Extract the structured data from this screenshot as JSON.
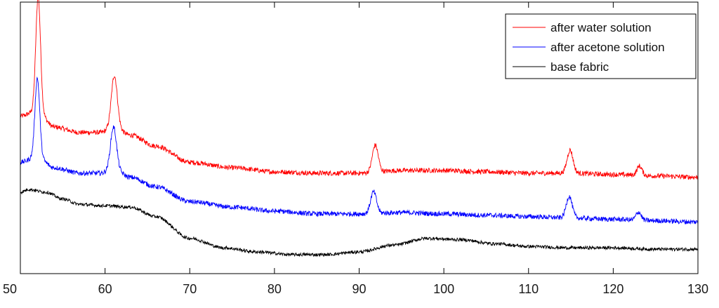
{
  "chart_data": {
    "type": "line",
    "title": "",
    "xlabel": "",
    "ylabel": "",
    "xlim": [
      50,
      130
    ],
    "ylim": [
      0,
      10
    ],
    "x_ticks": [
      50,
      60,
      70,
      80,
      90,
      100,
      110,
      120,
      130
    ],
    "grid": false,
    "legend_position": "top-right",
    "series": [
      {
        "name": "after water solution",
        "color": "#ff0000",
        "baseline": [
          [
            50,
            5.8
          ],
          [
            52,
            6.0
          ],
          [
            54,
            5.4
          ],
          [
            57,
            5.2
          ],
          [
            59.5,
            5.2
          ],
          [
            61,
            5.4
          ],
          [
            63,
            5.1
          ],
          [
            66,
            4.7
          ],
          [
            70,
            4.1
          ],
          [
            75,
            3.9
          ],
          [
            80,
            3.75
          ],
          [
            85,
            3.7
          ],
          [
            90,
            3.7
          ],
          [
            95,
            3.8
          ],
          [
            100,
            3.8
          ],
          [
            105,
            3.75
          ],
          [
            110,
            3.7
          ],
          [
            115,
            3.7
          ],
          [
            120,
            3.65
          ],
          [
            125,
            3.6
          ],
          [
            130,
            3.55
          ]
        ],
        "peaks": [
          [
            52.1,
            4.2,
            0.28
          ],
          [
            61.1,
            1.9,
            0.35
          ],
          [
            91.9,
            1.0,
            0.35
          ],
          [
            114.9,
            0.85,
            0.35
          ],
          [
            123.1,
            0.35,
            0.3
          ]
        ],
        "noise": 0.09
      },
      {
        "name": "after acetone solution",
        "color": "#0000ff",
        "baseline": [
          [
            50,
            4.1
          ],
          [
            52,
            4.3
          ],
          [
            54,
            3.9
          ],
          [
            57,
            3.7
          ],
          [
            59.5,
            3.7
          ],
          [
            61,
            3.85
          ],
          [
            63,
            3.55
          ],
          [
            66,
            3.2
          ],
          [
            70,
            2.65
          ],
          [
            75,
            2.45
          ],
          [
            80,
            2.3
          ],
          [
            85,
            2.2
          ],
          [
            90,
            2.2
          ],
          [
            95,
            2.25
          ],
          [
            100,
            2.2
          ],
          [
            105,
            2.15
          ],
          [
            110,
            2.1
          ],
          [
            115,
            2.05
          ],
          [
            120,
            2.0
          ],
          [
            125,
            1.95
          ],
          [
            130,
            1.9
          ]
        ],
        "peaks": [
          [
            52.0,
            2.9,
            0.28
          ],
          [
            61.0,
            1.55,
            0.35
          ],
          [
            91.7,
            0.8,
            0.35
          ],
          [
            114.8,
            0.8,
            0.35
          ],
          [
            123.0,
            0.3,
            0.3
          ]
        ],
        "noise": 0.09
      },
      {
        "name": "base fabric",
        "color": "#000000",
        "baseline": [
          [
            50,
            3.0
          ],
          [
            51,
            3.1
          ],
          [
            53,
            3.0
          ],
          [
            55,
            2.75
          ],
          [
            57,
            2.55
          ],
          [
            60,
            2.5
          ],
          [
            63,
            2.45
          ],
          [
            66,
            2.1
          ],
          [
            70,
            1.3
          ],
          [
            74,
            0.95
          ],
          [
            78,
            0.8
          ],
          [
            82,
            0.7
          ],
          [
            86,
            0.7
          ],
          [
            90,
            0.8
          ],
          [
            94,
            1.05
          ],
          [
            98,
            1.3
          ],
          [
            102,
            1.25
          ],
          [
            106,
            1.1
          ],
          [
            110,
            1.0
          ],
          [
            115,
            0.95
          ],
          [
            120,
            0.95
          ],
          [
            125,
            0.9
          ],
          [
            130,
            0.9
          ]
        ],
        "peaks": [],
        "noise": 0.06
      }
    ]
  }
}
